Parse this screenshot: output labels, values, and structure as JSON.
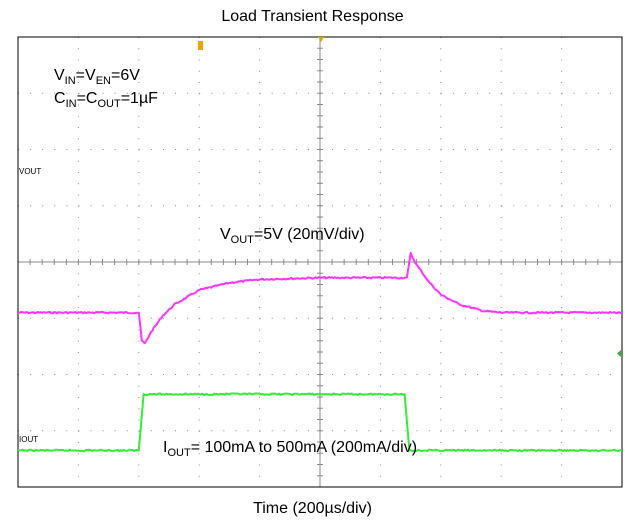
{
  "title": "Load Transient Response",
  "xlabel": "Time (200µs/div)",
  "annotations": {
    "vin_line": {
      "a": "V",
      "a_sub": "IN",
      "b": "=V",
      "b_sub": "EN",
      "c": "=6V"
    },
    "cin_line": {
      "a": "C",
      "a_sub": "IN",
      "b": "=C",
      "b_sub": "OUT",
      "c": "=1µF"
    },
    "vout_label": {
      "a": "V",
      "a_sub": "OUT",
      "b": "=5V (20mV/div)"
    },
    "iout_label": {
      "a": "I",
      "a_sub": "OUT",
      "b": "= 100mA to 500mA (200mA/div)"
    }
  },
  "channel_labels": {
    "vout": "VOUT",
    "iout": "IOUT"
  },
  "colors": {
    "vout": "#ff33ff",
    "iout": "#33ee33",
    "grid": "#8a8a8a",
    "frame": "#000000",
    "marker": "#f0a000"
  },
  "chart_data": {
    "type": "line",
    "title": "Load Transient Response",
    "xlabel": "Time (200µs/div)",
    "x_divisions": 10,
    "y_divisions": 8,
    "grid": true,
    "x_unit": "div",
    "series": [
      {
        "name": "VOUT",
        "scale": "20mV/div",
        "x": [
          0,
          1.8,
          2.0,
          2.05,
          2.1,
          2.2,
          2.4,
          2.6,
          3.0,
          3.5,
          4.0,
          5.0,
          6.0,
          6.44,
          6.5,
          6.6,
          6.8,
          7.0,
          7.3,
          7.7,
          8.0,
          9.0,
          10.0
        ],
        "y": [
          3.1,
          3.1,
          3.1,
          2.6,
          2.55,
          2.75,
          3.05,
          3.25,
          3.5,
          3.63,
          3.69,
          3.72,
          3.72,
          3.72,
          4.15,
          3.95,
          3.65,
          3.42,
          3.25,
          3.13,
          3.1,
          3.1,
          3.1
        ]
      },
      {
        "name": "IOUT",
        "scale": "200mA/div",
        "x": [
          0,
          2.0,
          2.08,
          3.0,
          5.0,
          6.4,
          6.48,
          7.0,
          10.0
        ],
        "y": [
          0.65,
          0.65,
          1.65,
          1.65,
          1.65,
          1.65,
          0.65,
          0.65,
          0.65
        ]
      }
    ]
  }
}
